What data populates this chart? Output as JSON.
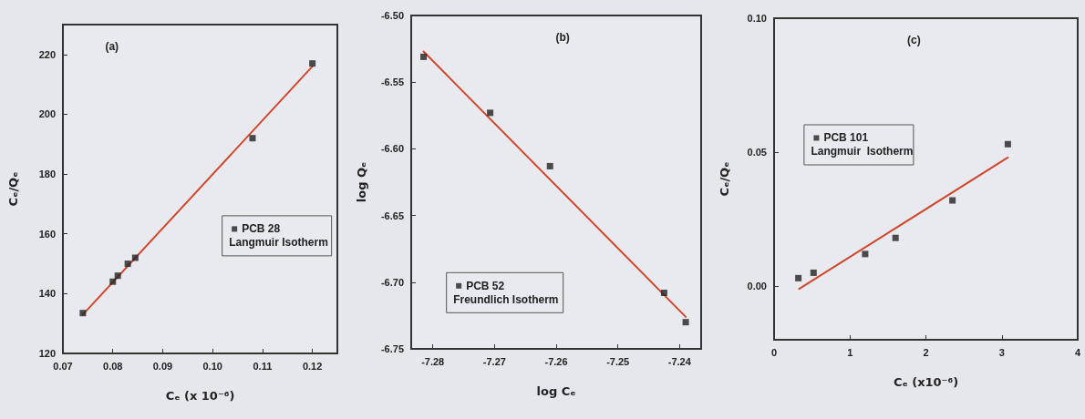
{
  "chart_data": [
    {
      "type": "scatter",
      "xlabel": "Cₑ (x 10⁻⁶)",
      "ylabel": "Cₑ/Qₑ",
      "annotations": [
        "(a)",
        "Langmuir Isotherm"
      ],
      "xlim": [
        0.07,
        0.125
      ],
      "xticks": [
        0.07,
        0.08,
        0.09,
        {
          "value": 0.1,
          "label": "0.10"
        },
        0.11,
        0.12
      ],
      "ylim": [
        120,
        230
      ],
      "yticks": [
        120,
        140,
        160,
        180,
        200,
        220
      ],
      "grid": false,
      "legend": "center right",
      "series": [
        {
          "name": "PCB 28",
          "marker": "square",
          "color": "#222222",
          "x": [
            0.074,
            0.08,
            0.081,
            0.083,
            0.0845,
            0.108,
            0.12
          ],
          "values": [
            133.5,
            144,
            146,
            150,
            152,
            192,
            217
          ]
        },
        {
          "type": "line",
          "marker": "none",
          "line_style": "solid",
          "color": "#d0462a",
          "x": [
            0.074,
            0.12
          ],
          "values": [
            133,
            216
          ]
        }
      ]
    },
    {
      "type": "scatter",
      "xlabel": "log Cₑ",
      "ylabel": "log Qₑ",
      "annotations": [
        "(b)",
        "Freundlich Isotherm"
      ],
      "xlim": [
        -7.2835,
        -7.2365
      ],
      "xticks": [
        -7.28,
        -7.27,
        -7.26,
        -7.25,
        -7.24
      ],
      "ylim": [
        -6.75,
        -6.5
      ],
      "yticks": [
        {
          "value": -6.5,
          "label": "-6.50"
        },
        -6.55,
        {
          "value": -6.6,
          "label": "-6.60"
        },
        -6.65,
        {
          "value": -6.7,
          "label": "-6.70"
        },
        -6.75
      ],
      "grid": false,
      "legend": "bottom left",
      "series": [
        {
          "name": "PCB 52",
          "marker": "square",
          "color": "#222222",
          "x": [
            -7.2815,
            -7.2707,
            -7.261,
            -7.2425,
            -7.239
          ],
          "values": [
            -6.531,
            -6.573,
            -6.613,
            -6.708,
            -6.73
          ]
        },
        {
          "type": "line",
          "marker": "none",
          "line_style": "solid",
          "color": "#d0462a",
          "x": [
            -7.2815,
            -7.239
          ],
          "values": [
            -6.527,
            -6.726
          ]
        }
      ]
    },
    {
      "type": "scatter",
      "xlabel": "Cₑ (x10⁻⁶)",
      "ylabel": "Cₑ/Qₑ",
      "annotations": [
        "(c)",
        "Langmuir  Isotherm"
      ],
      "xlim": [
        0,
        4
      ],
      "xticks": [
        0,
        1,
        2,
        3,
        4
      ],
      "ylim": [
        -0.02,
        0.1
      ],
      "yticks": [
        {
          "value": 0,
          "label": "0.00"
        },
        0.05,
        {
          "value": 0.1,
          "label": "0.10"
        }
      ],
      "grid": false,
      "legend": "center left",
      "series": [
        {
          "name": "PCB 101",
          "marker": "square",
          "color": "#222222",
          "x": [
            0.32,
            0.52,
            1.2,
            1.6,
            2.35,
            3.08
          ],
          "values": [
            0.003,
            0.005,
            0.012,
            0.018,
            0.032,
            0.053
          ]
        },
        {
          "type": "line",
          "marker": "none",
          "line_style": "solid",
          "color": "#d0462a",
          "x": [
            0.33,
            3.08
          ],
          "values": [
            -0.001,
            0.048
          ]
        }
      ]
    }
  ]
}
